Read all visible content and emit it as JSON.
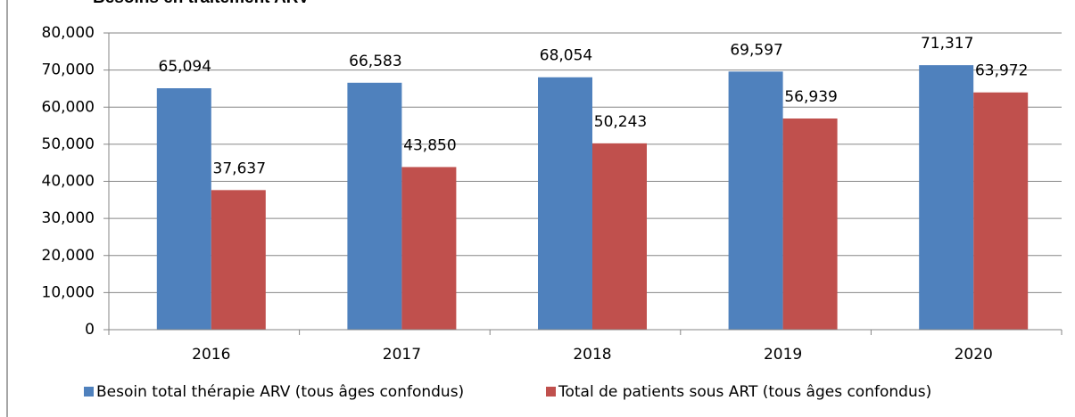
{
  "chart_data": {
    "type": "bar",
    "title": "Besoins en traitement ARV",
    "categories": [
      "2016",
      "2017",
      "2018",
      "2019",
      "2020"
    ],
    "series": [
      {
        "name": "Besoin total thérapie ARV (tous âges confondus)",
        "color": "#4f81bd",
        "values": [
          65094,
          66583,
          68054,
          69597,
          71317
        ],
        "value_labels": [
          "65,094",
          "66,583",
          "68,054",
          "69,597",
          "71,317"
        ]
      },
      {
        "name": "Total de patients sous ART (tous âges confondus)",
        "color": "#c0504d",
        "values": [
          37637,
          43850,
          50243,
          56939,
          63972
        ],
        "value_labels": [
          "37,637",
          "43,850",
          "50,243",
          "56,939",
          "63,972"
        ]
      }
    ],
    "ylim": [
      0,
      80000
    ],
    "yticks": [
      0,
      {
        "value": 10000,
        "label": "10,000"
      },
      {
        "value": 20000,
        "label": "20,000"
      },
      {
        "value": 30000,
        "label": "30,000"
      },
      {
        "value": 40000,
        "label": "40,000"
      },
      {
        "value": 50000,
        "label": "50,000"
      },
      {
        "value": 60000,
        "label": "60,000"
      },
      {
        "value": 70000,
        "label": "70,000"
      },
      {
        "value": 80000,
        "label": "80,000"
      }
    ],
    "grid": true,
    "legend": "bottom"
  }
}
